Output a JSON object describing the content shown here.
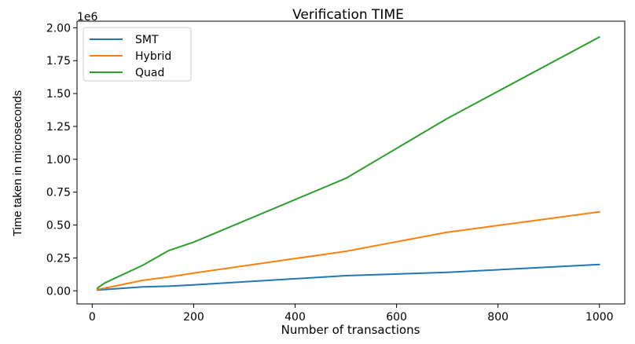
{
  "chart_data": {
    "type": "line",
    "title": "Verification TIME",
    "xlabel": "Number of transactions",
    "ylabel": "Time taken in microseconds",
    "y_offset_label": "1e6",
    "xlim": [
      -30,
      1050
    ],
    "ylim": [
      -0.1,
      2.05
    ],
    "x_ticks": [
      0,
      200,
      400,
      600,
      800,
      1000
    ],
    "y_ticks": [
      0.0,
      0.25,
      0.5,
      0.75,
      1.0,
      1.25,
      1.5,
      1.75,
      2.0
    ],
    "x_tick_labels": [
      "0",
      "200",
      "400",
      "600",
      "800",
      "1000"
    ],
    "y_tick_labels": [
      "0.00",
      "0.25",
      "0.50",
      "0.75",
      "1.00",
      "1.25",
      "1.50",
      "1.75",
      "2.00"
    ],
    "grid": false,
    "legend_position": "top-left",
    "series": [
      {
        "name": "SMT",
        "color": "#1f77b4",
        "x": [
          10,
          25,
          100,
          150,
          200,
          500,
          700,
          1000
        ],
        "y": [
          0.005,
          0.01,
          0.03,
          0.035,
          0.045,
          0.115,
          0.14,
          0.2
        ]
      },
      {
        "name": "Hybrid",
        "color": "#ff7f0e",
        "x": [
          10,
          25,
          100,
          150,
          200,
          500,
          700,
          1000
        ],
        "y": [
          0.01,
          0.02,
          0.08,
          0.105,
          0.135,
          0.3,
          0.445,
          0.6
        ]
      },
      {
        "name": "Quad",
        "color": "#2ca02c",
        "x": [
          10,
          25,
          100,
          150,
          200,
          500,
          700,
          1000
        ],
        "y": [
          0.02,
          0.06,
          0.195,
          0.305,
          0.37,
          0.855,
          1.31,
          1.93
        ]
      }
    ]
  }
}
